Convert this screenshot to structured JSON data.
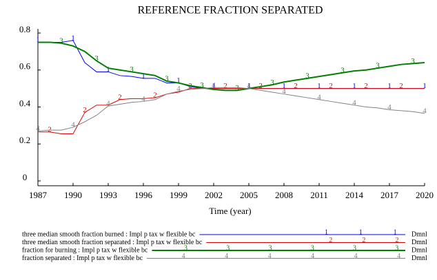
{
  "chart_data": {
    "type": "line",
    "title": "REFERENCE FRACTION SEPARATED",
    "x_label": "Time (year)",
    "x": [
      1987,
      1988,
      1989,
      1990,
      1991,
      1992,
      1993,
      1994,
      1995,
      1996,
      1997,
      1998,
      1999,
      2000,
      2001,
      2002,
      2003,
      2004,
      2005,
      2006,
      2007,
      2008,
      2009,
      2010,
      2011,
      2012,
      2013,
      2014,
      2015,
      2016,
      2017,
      2018,
      2019,
      2020
    ],
    "xlim": [
      1987,
      2020
    ],
    "xticks": [
      1987,
      1990,
      1993,
      1996,
      1999,
      2002,
      2005,
      2008,
      2011,
      2014,
      2017,
      2020
    ],
    "ylim": [
      0,
      0.8
    ],
    "yticks": [
      0,
      0.2,
      0.4,
      0.6,
      0.8
    ],
    "grid": false,
    "series": [
      {
        "name": "three median smooth fraction burned : Impl p tax w flexible bc",
        "marker": "1",
        "unit": "Dmnl",
        "color": "#0000ff",
        "values": [
          0.75,
          0.75,
          0.75,
          0.76,
          0.64,
          0.59,
          0.59,
          0.57,
          0.565,
          0.555,
          0.555,
          0.53,
          0.53,
          0.51,
          0.5,
          0.5,
          0.5,
          0.5,
          0.5,
          0.5,
          0.5,
          0.5,
          0.5,
          0.5,
          0.5,
          0.5,
          0.5,
          0.5,
          0.5,
          0.5,
          0.5,
          0.5,
          0.5,
          0.5
        ]
      },
      {
        "name": "three median smooth fraction separated : Impl p tax w flexible bc",
        "marker": "2",
        "unit": "Dmnl",
        "color": "#e00000",
        "values": [
          0.265,
          0.265,
          0.255,
          0.255,
          0.37,
          0.41,
          0.41,
          0.44,
          0.445,
          0.445,
          0.45,
          0.47,
          0.48,
          0.5,
          0.5,
          0.5,
          0.5,
          0.5,
          0.5,
          0.5,
          0.5,
          0.5,
          0.5,
          0.5,
          0.5,
          0.5,
          0.5,
          0.5,
          0.5,
          0.5,
          0.5,
          0.5,
          0.5,
          0.5
        ]
      },
      {
        "name": "fraction for burning : Impl p tax w flexible bc",
        "marker": "3",
        "unit": "Dmnl",
        "color": "#008000",
        "values": [
          0.75,
          0.75,
          0.745,
          0.73,
          0.7,
          0.65,
          0.61,
          0.6,
          0.59,
          0.58,
          0.57,
          0.54,
          0.53,
          0.515,
          0.505,
          0.495,
          0.49,
          0.49,
          0.5,
          0.51,
          0.52,
          0.535,
          0.545,
          0.555,
          0.565,
          0.575,
          0.585,
          0.595,
          0.6,
          0.61,
          0.62,
          0.63,
          0.635,
          0.64
        ]
      },
      {
        "name": "fraction separated : Impl p tax w flexible bc",
        "marker": "4",
        "unit": "Dmnl",
        "color": "#808080",
        "values": [
          0.27,
          0.275,
          0.275,
          0.29,
          0.32,
          0.355,
          0.405,
          0.415,
          0.425,
          0.43,
          0.44,
          0.47,
          0.485,
          0.495,
          0.5,
          0.505,
          0.505,
          0.505,
          0.5,
          0.49,
          0.48,
          0.47,
          0.46,
          0.45,
          0.44,
          0.43,
          0.42,
          0.41,
          0.4,
          0.395,
          0.385,
          0.38,
          0.375,
          0.365
        ]
      }
    ]
  }
}
